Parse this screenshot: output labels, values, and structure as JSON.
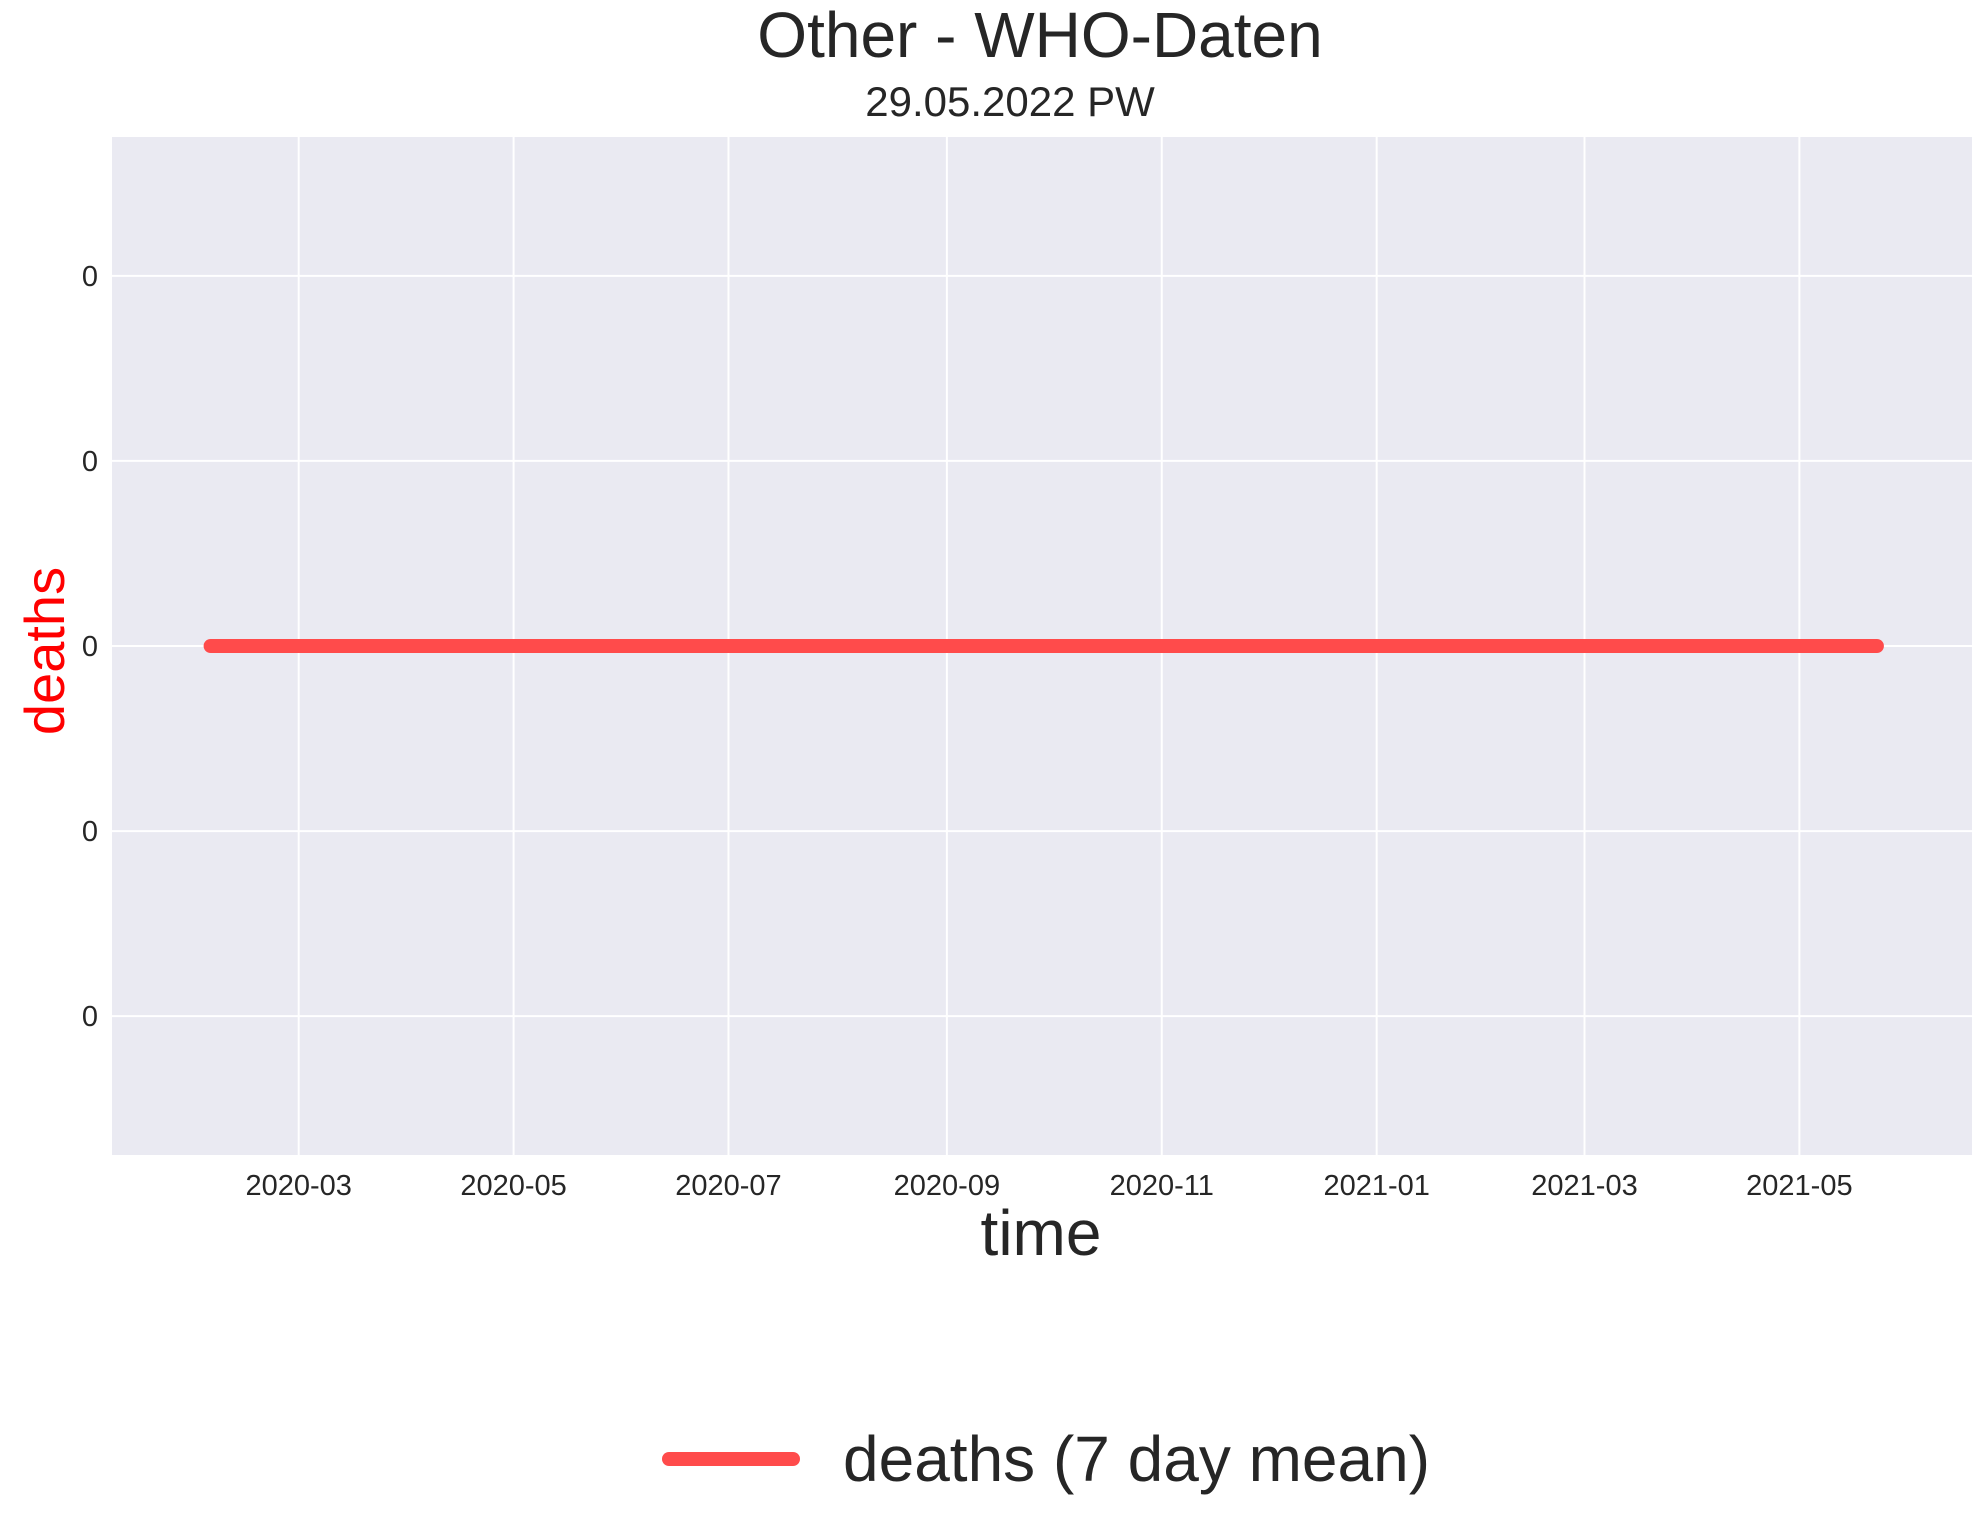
{
  "chart_data": {
    "type": "line",
    "title": "Other - WHO-Daten",
    "subtitle": "29.05.2022 PW",
    "xlabel": "time",
    "ylabel": "deaths",
    "ylabel_color": "#ff0000",
    "x_ticks": [
      "2020-03",
      "2020-05",
      "2020-07",
      "2020-09",
      "2020-11",
      "2021-01",
      "2021-03",
      "2021-05"
    ],
    "y_ticks": [
      "0",
      "0",
      "0",
      "0",
      "0"
    ],
    "xlim": [
      "2020-01-08",
      "2021-06-19"
    ],
    "ylim": [
      -0.055,
      0.055
    ],
    "y_tick_values": [
      -0.04,
      -0.02,
      0,
      0.02,
      0.04
    ],
    "grid": true,
    "background": "#eaeaf2",
    "legend_position": "bottom-center",
    "series": [
      {
        "name": "deaths (7 day mean)",
        "color": "#ff4b4b",
        "x": [
          "2020-02-05",
          "2021-05-23"
        ],
        "y": [
          0,
          0
        ]
      }
    ]
  }
}
